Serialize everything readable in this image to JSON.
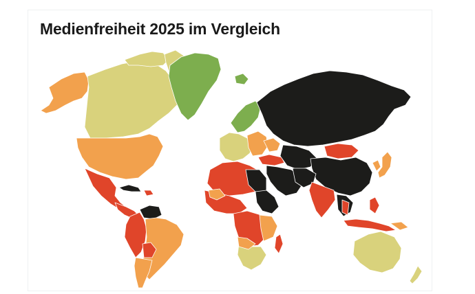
{
  "title": "Medienfreiheit 2025 im Vergleich",
  "colors": {
    "good": "#7dae4e",
    "satisfactory": "#d9d27c",
    "problematic": "#f2a14d",
    "difficult": "#e0452a",
    "very_serious": "#1c1c1a",
    "background": "#ffffff"
  }
}
